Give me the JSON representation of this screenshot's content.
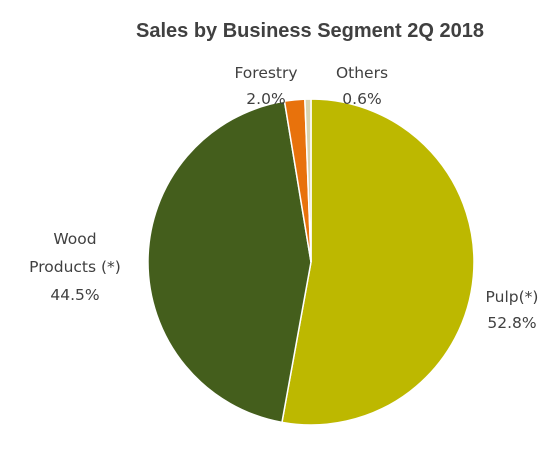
{
  "chart_data": {
    "type": "pie",
    "title": "Sales by Business Segment 2Q 2018",
    "slices": [
      {
        "label_lines": [
          "Pulp(*)"
        ],
        "value_label": "52.8%",
        "value": 52.8,
        "color": "#bdb800"
      },
      {
        "label_lines": [
          "Wood",
          "Products (*)"
        ],
        "value_label": "44.5%",
        "value": 44.5,
        "color": "#445e1c"
      },
      {
        "label_lines": [
          "Forestry"
        ],
        "value_label": "2.0%",
        "value": 2.0,
        "color": "#e8720c"
      },
      {
        "label_lines": [
          "Others"
        ],
        "value_label": "0.6%",
        "value": 0.6,
        "color": "#d9d4b0"
      }
    ]
  }
}
